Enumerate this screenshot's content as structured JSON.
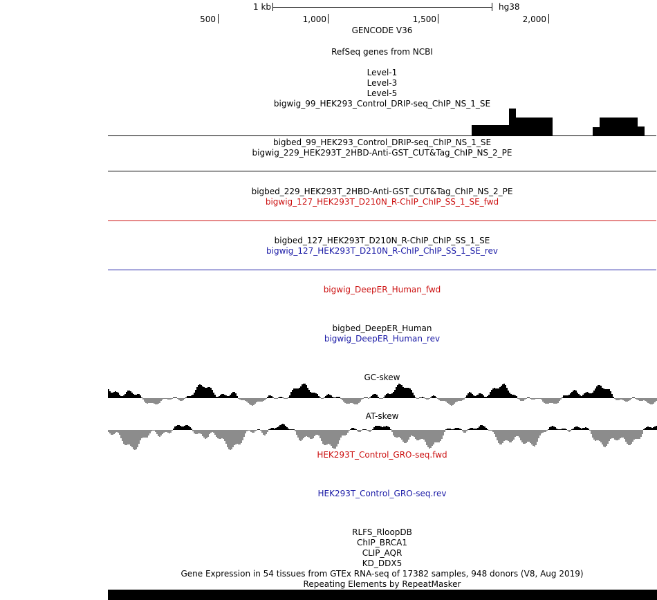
{
  "ruler": {
    "scale_label": "1 kb",
    "assembly": "hg38",
    "ticks": [
      "500",
      "1,000",
      "1,500",
      "2,000"
    ]
  },
  "tracks": [
    {
      "id": "gencode",
      "label": "GENCODE V36",
      "color": "black"
    },
    {
      "id": "refseq",
      "label": "RefSeq genes from NCBI",
      "color": "black"
    },
    {
      "id": "level1",
      "label": "Level-1",
      "color": "black"
    },
    {
      "id": "level3",
      "label": "Level-3",
      "color": "black"
    },
    {
      "id": "level5",
      "label": "Level-5",
      "color": "black"
    },
    {
      "id": "drip_bw",
      "label": "bigwig_99_HEK293_Control_DRIP-seq_ChIP_NS_1_SE",
      "color": "black"
    },
    {
      "id": "drip_bb",
      "label": "bigbed_99_HEK293_Control_DRIP-seq_ChIP_NS_1_SE",
      "color": "black"
    },
    {
      "id": "cut_bw",
      "label": "bigwig_229_HEK293T_2HBD-Anti-GST_CUT&Tag_ChIP_NS_2_PE",
      "color": "black"
    },
    {
      "id": "cut_bb",
      "label": "bigbed_229_HEK293T_2HBD-Anti-GST_CUT&Tag_ChIP_NS_2_PE",
      "color": "black"
    },
    {
      "id": "rchip_fwd",
      "label": "bigwig_127_HEK293T_D210N_R-ChIP_ChIP_SS_1_SE_fwd",
      "color": "red"
    },
    {
      "id": "rchip_bb",
      "label": "bigbed_127_HEK293T_D210N_R-ChIP_ChIP_SS_1_SE",
      "color": "black"
    },
    {
      "id": "rchip_rev",
      "label": "bigwig_127_HEK293T_D210N_R-ChIP_ChIP_SS_1_SE_rev",
      "color": "blue"
    },
    {
      "id": "deeper_fwd",
      "label": "bigwig_DeepER_Human_fwd",
      "color": "red"
    },
    {
      "id": "deeper_bb",
      "label": "bigbed_DeepER_Human",
      "color": "black"
    },
    {
      "id": "deeper_rev",
      "label": "bigwig_DeepER_Human_rev",
      "color": "blue"
    },
    {
      "id": "gcskew",
      "label": "GC-skew",
      "color": "black"
    },
    {
      "id": "atskew",
      "label": "AT-skew",
      "color": "black"
    },
    {
      "id": "gro_fwd",
      "label": "HEK293T_Control_GRO-seq.fwd",
      "color": "red"
    },
    {
      "id": "gro_rev",
      "label": "HEK293T_Control_GRO-seq.rev",
      "color": "blue"
    },
    {
      "id": "rlfs",
      "label": "RLFS_RloopDB",
      "color": "black"
    },
    {
      "id": "brca1",
      "label": "ChIP_BRCA1",
      "color": "black"
    },
    {
      "id": "aqr",
      "label": "CLIP_AQR",
      "color": "black"
    },
    {
      "id": "ddx5",
      "label": "KD_DDX5",
      "color": "black"
    },
    {
      "id": "gtex",
      "label": "Gene Expression in 54 tissues from GTEx RNA-seq of 17382 samples, 948 donors (V8, Aug 2019)",
      "color": "black"
    },
    {
      "id": "rmsk",
      "label": "Repeating Elements by RepeatMasker",
      "color": "black"
    }
  ],
  "colors": {
    "red": "#cc1111",
    "blue": "#1a1aa6",
    "gray": "#8c8c8c"
  }
}
